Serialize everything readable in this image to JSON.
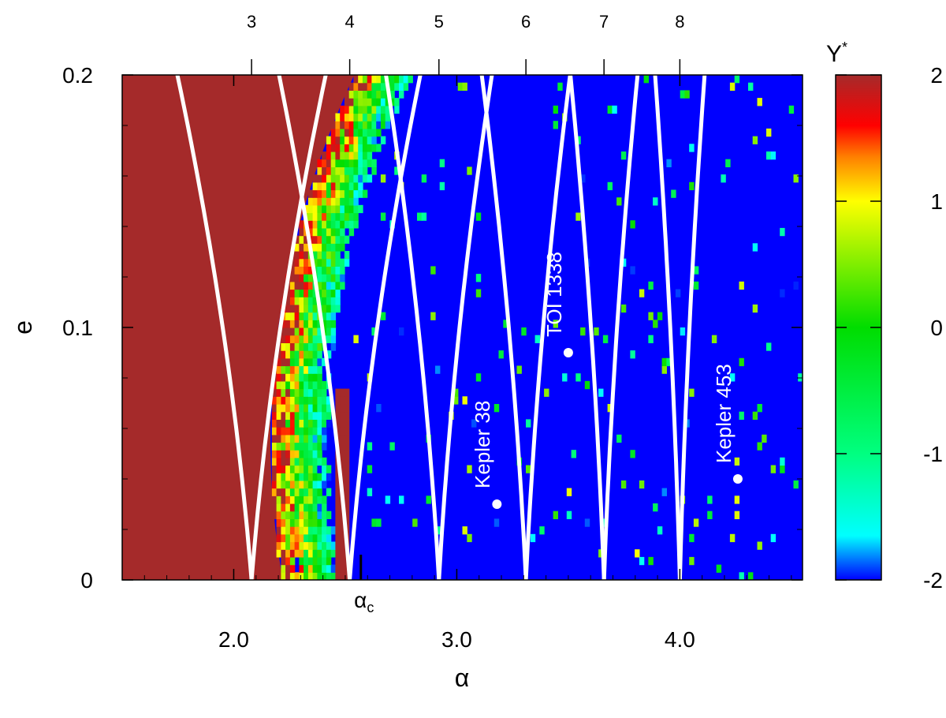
{
  "chart_data": {
    "type": "heatmap",
    "title": "",
    "xlabel": "α",
    "ylabel": "e",
    "xlim": [
      1.5,
      4.55
    ],
    "ylim": [
      0,
      0.2
    ],
    "bottom_ticks": [
      {
        "value": 2.0,
        "label": "2.0"
      },
      {
        "value": 3.0,
        "label": "3.0"
      },
      {
        "value": 4.0,
        "label": "4.0"
      }
    ],
    "left_ticks": [
      {
        "value": 0,
        "label": "0"
      },
      {
        "value": 0.1,
        "label": "0.1"
      },
      {
        "value": 0.2,
        "label": "0.2"
      }
    ],
    "top_axis": {
      "ticks": [
        {
          "value": 2.08,
          "label": "3"
        },
        {
          "value": 2.52,
          "label": "4"
        },
        {
          "value": 2.92,
          "label": "5"
        },
        {
          "value": 3.31,
          "label": "6"
        },
        {
          "value": 3.66,
          "label": "7"
        },
        {
          "value": 4.0,
          "label": "8"
        }
      ]
    },
    "critical_marker": {
      "value": 2.57,
      "label": "α",
      "subscript": "c"
    },
    "colorbar": {
      "label": "Y",
      "label_superscript": "*",
      "range": [
        -2,
        2
      ],
      "ticks": [
        {
          "value": 2,
          "label": "2"
        },
        {
          "value": 1,
          "label": "1"
        },
        {
          "value": 0,
          "label": "0"
        },
        {
          "value": -1,
          "label": "-1"
        },
        {
          "value": -2,
          "label": "-2"
        }
      ],
      "stops": [
        {
          "value": -2.0,
          "color": "#0000ff"
        },
        {
          "value": -1.65,
          "color": "#00ffff"
        },
        {
          "value": -1.0,
          "color": "#00ff80"
        },
        {
          "value": 0.0,
          "color": "#00dd00"
        },
        {
          "value": 1.0,
          "color": "#ffff00"
        },
        {
          "value": 1.35,
          "color": "#ff8000"
        },
        {
          "value": 1.6,
          "color": "#ff0000"
        },
        {
          "value": 2.0,
          "color": "#a52a2a"
        }
      ]
    },
    "systems": [
      {
        "name": "Kepler 38",
        "alpha": 3.18,
        "e": 0.03
      },
      {
        "name": "TOI 1338",
        "alpha": 3.5,
        "e": 0.09
      },
      {
        "name": "Kepler 453",
        "alpha": 4.26,
        "e": 0.04
      }
    ],
    "resonance_curves": [
      {
        "e0_alpha": 2.08,
        "slope": 0.42
      },
      {
        "e0_alpha": 2.52,
        "slope": 0.4
      },
      {
        "e0_alpha": 2.92,
        "slope": 0.3
      },
      {
        "e0_alpha": 3.31,
        "slope": 0.25
      },
      {
        "e0_alpha": 3.66,
        "slope": 0.19
      },
      {
        "e0_alpha": 4.0,
        "slope": 0.14
      }
    ]
  }
}
